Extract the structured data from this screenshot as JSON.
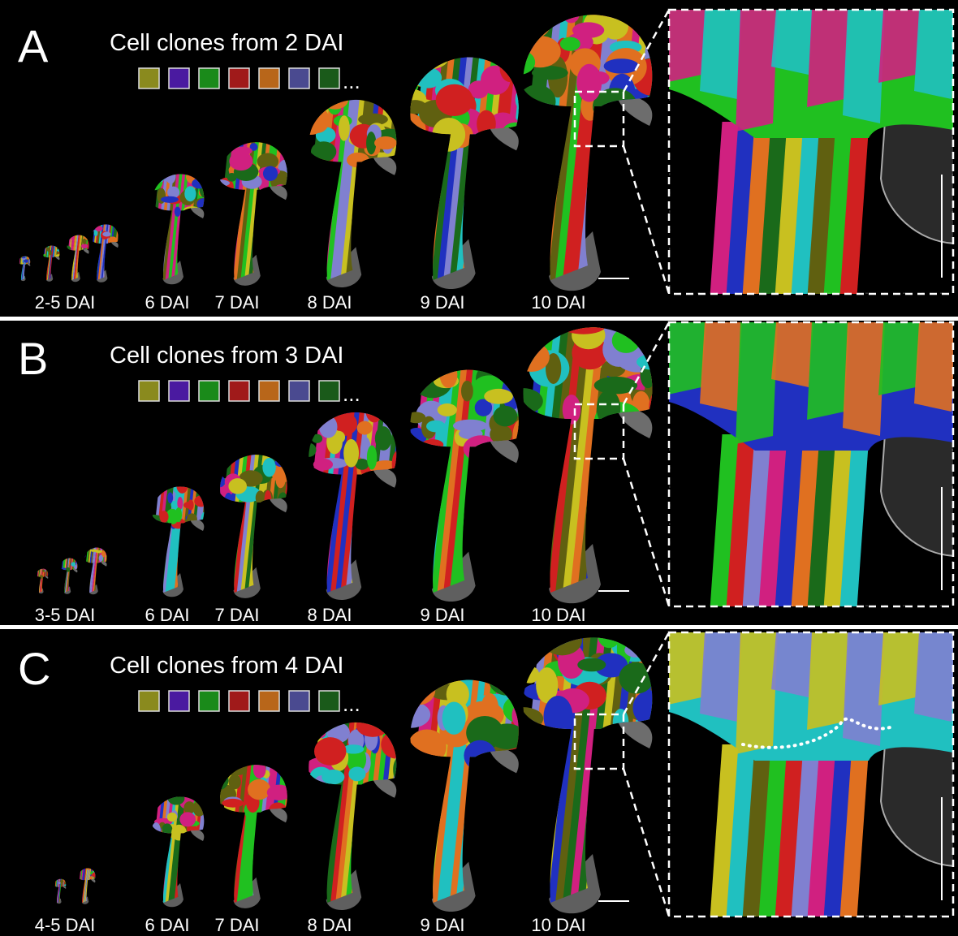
{
  "panels": [
    {
      "letter": "A",
      "title": "Cell clones from 2 DAI",
      "ellipsis": "...",
      "stages": [
        "2-5 DAI",
        "6 DAI",
        "7 DAI",
        "8 DAI",
        "9 DAI",
        "10 DAI"
      ]
    },
    {
      "letter": "B",
      "title": "Cell clones from 3 DAI",
      "ellipsis": "...",
      "stages": [
        "3-5 DAI",
        "6 DAI",
        "7 DAI",
        "8 DAI",
        "9 DAI",
        "10 DAI"
      ]
    },
    {
      "letter": "C",
      "title": "Cell clones from 4 DAI",
      "ellipsis": "...",
      "stages": [
        "4-5 DAI",
        "6 DAI",
        "7 DAI",
        "8 DAI",
        "9 DAI",
        "10 DAI"
      ]
    }
  ],
  "swatch_colors": [
    "#8a8a1e",
    "#4a1aa0",
    "#1a8a1a",
    "#a01a1a",
    "#b8661a",
    "#4a4a90",
    "#1a5a1a"
  ]
}
